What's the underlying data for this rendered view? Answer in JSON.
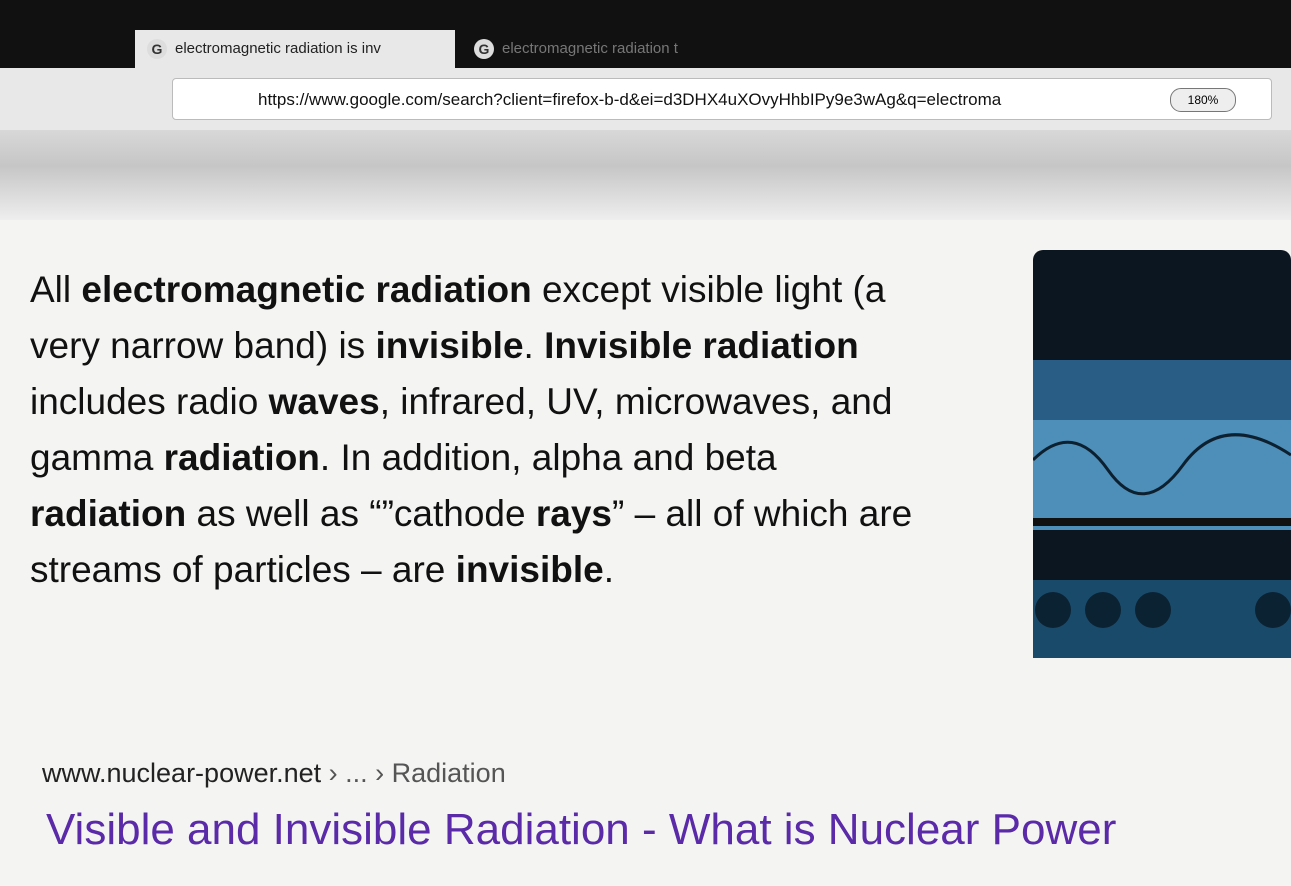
{
  "browser": {
    "tabs": [
      {
        "title": "electromagnetic radiation is inv",
        "active": true
      },
      {
        "title": "electromagnetic radiation t",
        "active": false
      }
    ],
    "url": "https://www.google.com/search?client=firefox-b-d&ei=d3DHX4uXOvyHhbIPy9e3wAg&q=electroma",
    "zoom": "180%"
  },
  "result": {
    "snippet": [
      {
        "text": "All ",
        "bold": false
      },
      {
        "text": "electromagnetic radiation",
        "bold": true
      },
      {
        "text": " except visible light (a very narrow band) is ",
        "bold": false
      },
      {
        "text": "invisible",
        "bold": true
      },
      {
        "text": ". ",
        "bold": false
      },
      {
        "text": "Invisible radiation",
        "bold": true
      },
      {
        "text": " includes radio ",
        "bold": false
      },
      {
        "text": "waves",
        "bold": true
      },
      {
        "text": ", infrared, UV, microwaves, and gamma ",
        "bold": false
      },
      {
        "text": "radiation",
        "bold": true
      },
      {
        "text": ". In addition, alpha and beta ",
        "bold": false
      },
      {
        "text": "radiation",
        "bold": true
      },
      {
        "text": " as well as “”cathode ",
        "bold": false
      },
      {
        "text": "rays",
        "bold": true
      },
      {
        "text": "” – all of which are streams of particles – are ",
        "bold": false
      },
      {
        "text": "invisible",
        "bold": true
      },
      {
        "text": ".",
        "bold": false
      }
    ],
    "site": "www.nuclear-power.net",
    "breadcrumb": " › ... › Radiation",
    "title": "Visible and Invisible Radiation - What is Nuclear Power"
  }
}
